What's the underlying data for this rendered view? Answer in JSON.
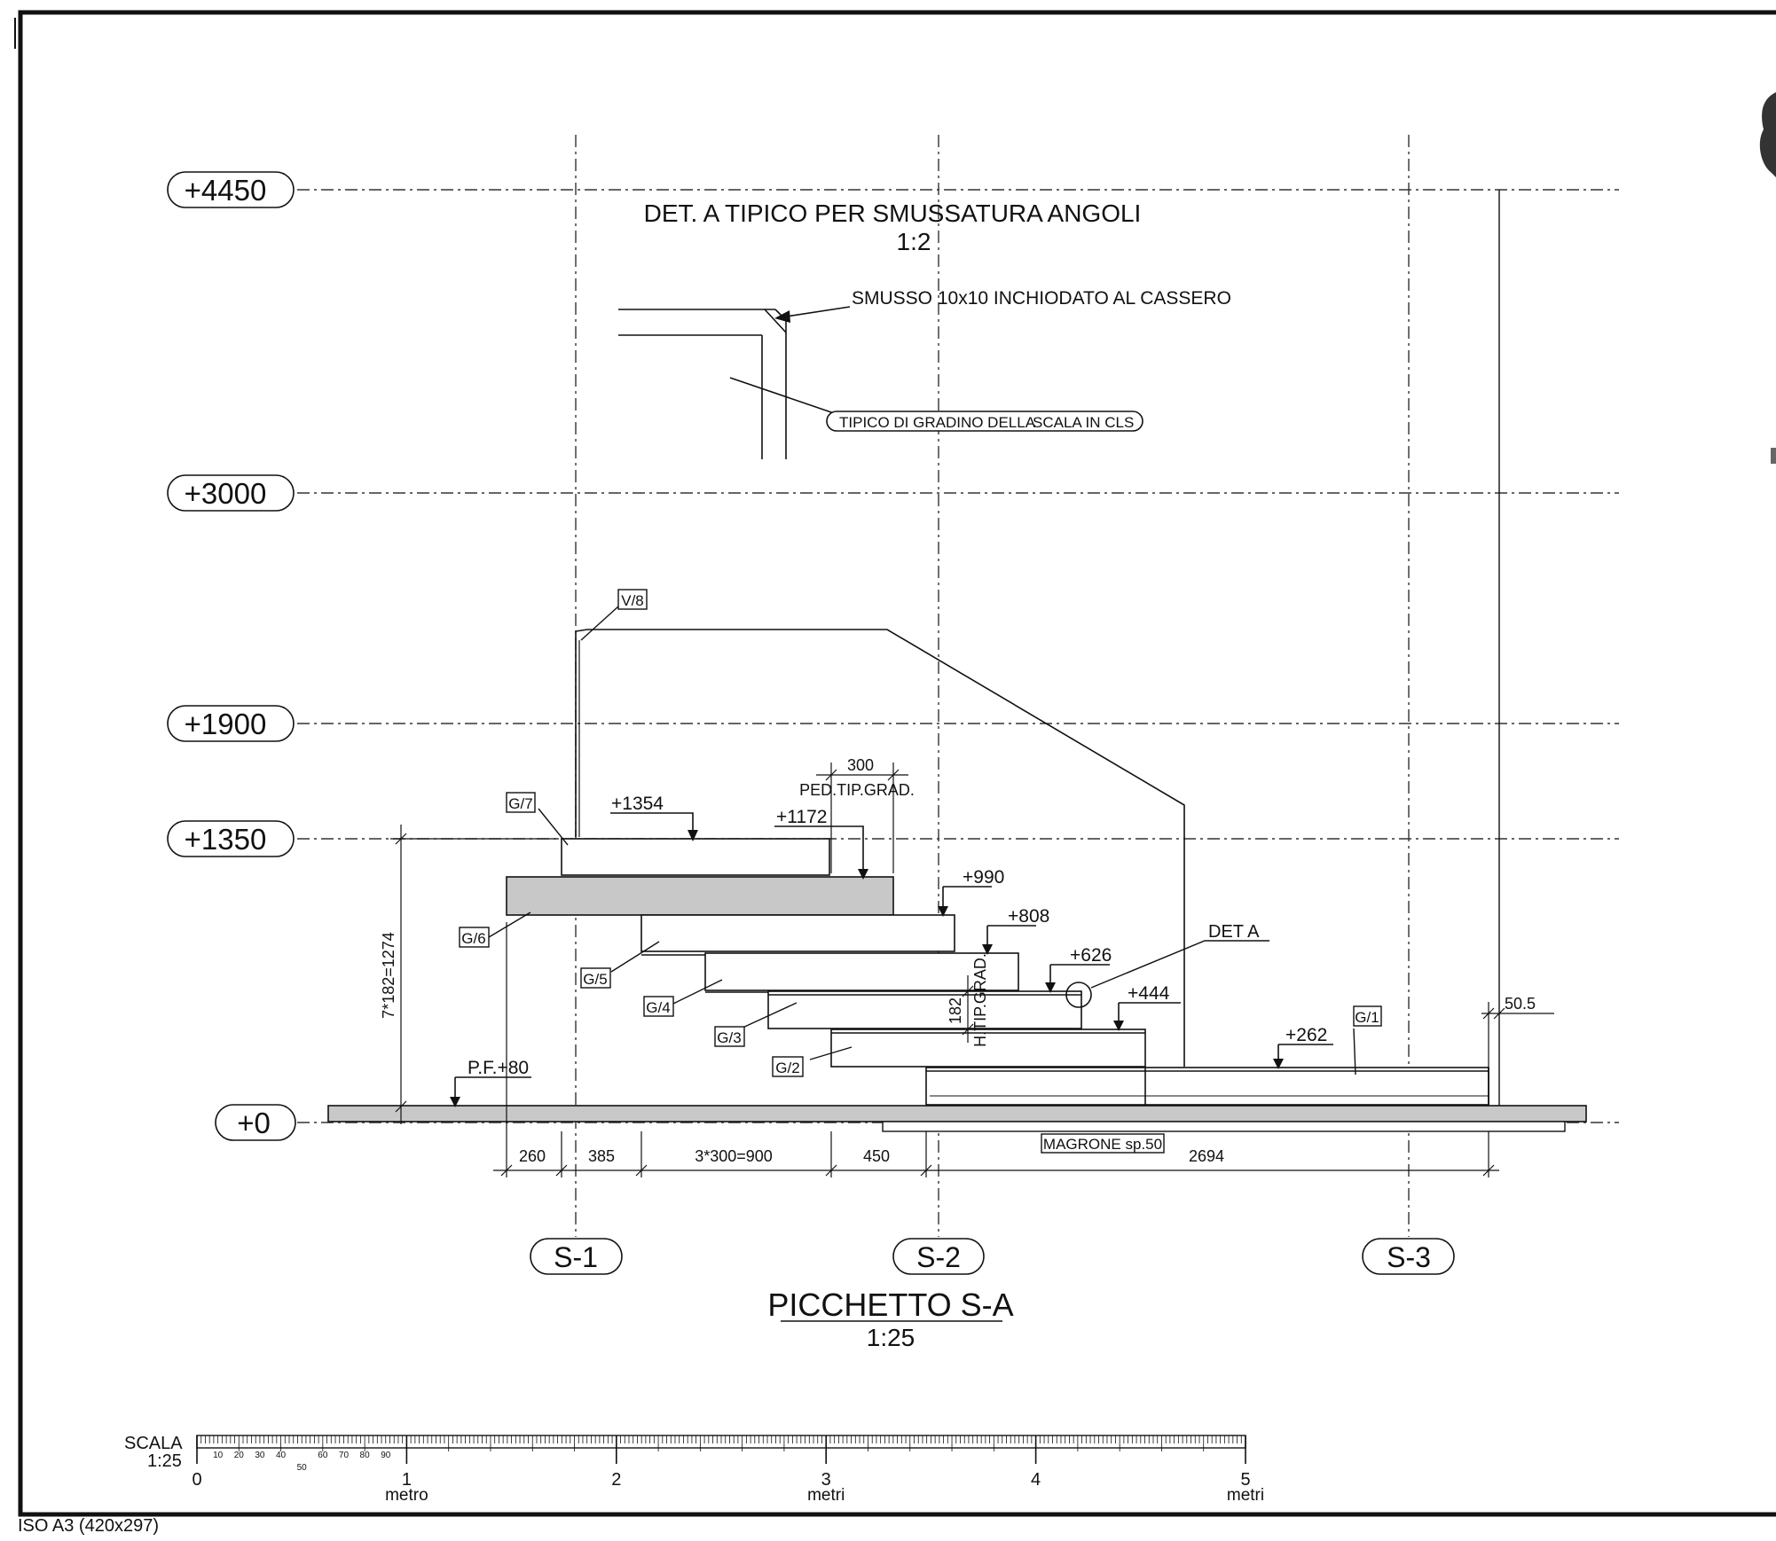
{
  "levels": [
    {
      "label": "+4450",
      "value": 4450
    },
    {
      "label": "+3000",
      "value": 3000
    },
    {
      "label": "+1900",
      "value": 1900
    },
    {
      "label": "+1350",
      "value": 1350
    },
    {
      "label": "+0",
      "value": 0
    }
  ],
  "axes": [
    {
      "label": "S-1"
    },
    {
      "label": "S-2"
    },
    {
      "label": "S-3"
    }
  ],
  "detail": {
    "title": "DET.  A TIPICO PER SMUSSATURA ANGOLI",
    "scale": "1:2",
    "chamfer_note": "SMUSSO 10x10 INCHIODATO AL CASSERO",
    "step_note_a": "TIPICO DI GRADINO DELLA",
    "step_note_b": "SCALA IN CLS"
  },
  "elevations": {
    "e1354": "+1354",
    "e1172": "+1172",
    "e990": "+990",
    "e808": "+808",
    "e626": "+626",
    "e444": "+444",
    "e262": "+262",
    "pf": "P.F.+80"
  },
  "elements": {
    "v8": "V/8",
    "g7": "G/7",
    "g6": "G/6",
    "g5": "G/5",
    "g4": "G/4",
    "g3": "G/3",
    "g2": "G/2",
    "g1": "G/1"
  },
  "dimensions": {
    "tread": "300",
    "tread_label": "PED.TIP.GRAD.",
    "riser": "182",
    "riser_label": "H.TIP.GRAD.",
    "total_rise": "7*182=1274",
    "d260": "260",
    "d385": "385",
    "d900": "3*300=900",
    "d450": "450",
    "d2694": "2694",
    "d50_5": "50.5"
  },
  "det_a_callout": "DET  A",
  "magrone": "MAGRONE    sp.50",
  "section": {
    "title": "PICCHETTO S-A",
    "scale": "1:25"
  },
  "scale_bar": {
    "title": "SCALA",
    "ratio": "1:25",
    "fine_ticks": [
      "10",
      "20",
      "30",
      "40",
      "50",
      "60",
      "70",
      "80",
      "90"
    ],
    "major": [
      {
        "n": "0",
        "unit": ""
      },
      {
        "n": "1",
        "unit": "metro"
      },
      {
        "n": "2",
        "unit": ""
      },
      {
        "n": "3",
        "unit": "metri"
      },
      {
        "n": "4",
        "unit": ""
      },
      {
        "n": "5",
        "unit": "metri"
      }
    ]
  },
  "sheet": "ISO A3 (420x297)"
}
